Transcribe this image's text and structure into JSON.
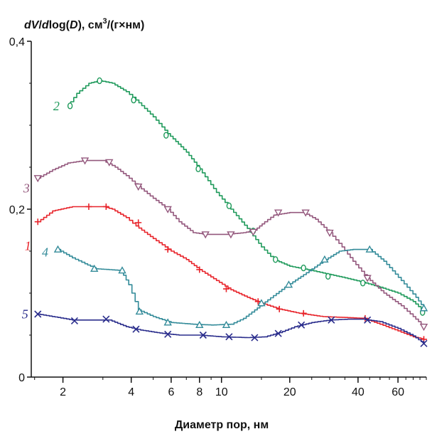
{
  "chart_data": {
    "type": "line",
    "title": "",
    "ylabel": "dV/dlog(D), см³/(г×нм)",
    "ylabel_parts": {
      "italic1": "dV",
      "slash1": "/",
      "italic2": "d",
      "log": "log(",
      "italic3": "D",
      "close": "), см",
      "sup": "3",
      "tail": "/(г×нм)"
    },
    "xlabel": "Диаметр пор, нм",
    "xscale": "log",
    "xlim": [
      1.45,
      80
    ],
    "ylim": [
      0,
      0.4
    ],
    "x_ticks": [
      {
        "value": 2,
        "label": "2"
      },
      {
        "value": 4,
        "label": "4"
      },
      {
        "value": 6,
        "label": "6"
      },
      {
        "value": 8,
        "label": "8"
      },
      {
        "value": 10,
        "label": "10"
      },
      {
        "value": 20,
        "label": "20"
      },
      {
        "value": 40,
        "label": "40"
      },
      {
        "value": 60,
        "label": "60"
      }
    ],
    "y_ticks": [
      {
        "value": 0,
        "label": "0"
      },
      {
        "value": 0.2,
        "label": "0,2"
      },
      {
        "value": 0.4,
        "label": "0,4"
      }
    ],
    "grid": false,
    "legend": "labels-at-curve-start",
    "series": [
      {
        "label": "1",
        "color": "#e8242b",
        "marker": "plus",
        "points": [
          [
            1.55,
            0.185
          ],
          [
            1.8,
            0.198
          ],
          [
            2.2,
            0.203
          ],
          [
            2.6,
            0.203
          ],
          [
            3.0,
            0.203
          ],
          [
            3.3,
            0.2
          ],
          [
            3.8,
            0.19
          ],
          [
            4.2,
            0.18
          ],
          [
            5.0,
            0.165
          ],
          [
            6.0,
            0.15
          ],
          [
            7.0,
            0.14
          ],
          [
            8.0,
            0.128
          ],
          [
            9.5,
            0.115
          ],
          [
            11.0,
            0.104
          ],
          [
            13.0,
            0.095
          ],
          [
            15.0,
            0.088
          ],
          [
            18.0,
            0.081
          ],
          [
            22.0,
            0.076
          ],
          [
            28.0,
            0.072
          ],
          [
            35.0,
            0.071
          ],
          [
            42.0,
            0.07
          ],
          [
            50.0,
            0.063
          ],
          [
            60.0,
            0.055
          ],
          [
            70.0,
            0.048
          ],
          [
            78.0,
            0.045
          ]
        ],
        "markers": [
          [
            1.55,
            0.185
          ],
          [
            2.6,
            0.203
          ],
          [
            3.1,
            0.203
          ],
          [
            4.3,
            0.184
          ],
          [
            5.8,
            0.152
          ],
          [
            8.0,
            0.128
          ],
          [
            10.5,
            0.105
          ],
          [
            14.5,
            0.09
          ],
          [
            18.0,
            0.081
          ],
          [
            23.0,
            0.076
          ],
          [
            43.0,
            0.07
          ],
          [
            78.0,
            0.045
          ]
        ]
      },
      {
        "label": "2",
        "color": "#1f9a5b",
        "marker": "circle",
        "points": [
          [
            2.1,
            0.323
          ],
          [
            2.3,
            0.338
          ],
          [
            2.6,
            0.35
          ],
          [
            2.9,
            0.353
          ],
          [
            3.3,
            0.35
          ],
          [
            3.8,
            0.34
          ],
          [
            4.2,
            0.33
          ],
          [
            5.0,
            0.31
          ],
          [
            5.8,
            0.29
          ],
          [
            7.0,
            0.268
          ],
          [
            8.0,
            0.248
          ],
          [
            9.5,
            0.22
          ],
          [
            11.0,
            0.2
          ],
          [
            13.0,
            0.177
          ],
          [
            15.0,
            0.155
          ],
          [
            17.0,
            0.14
          ],
          [
            20.0,
            0.132
          ],
          [
            24.0,
            0.128
          ],
          [
            28.0,
            0.124
          ],
          [
            34.0,
            0.119
          ],
          [
            42.0,
            0.113
          ],
          [
            50.0,
            0.107
          ],
          [
            60.0,
            0.1
          ],
          [
            70.0,
            0.09
          ],
          [
            78.0,
            0.078
          ]
        ],
        "markers": [
          [
            2.15,
            0.323
          ],
          [
            2.9,
            0.353
          ],
          [
            4.1,
            0.33
          ],
          [
            5.7,
            0.288
          ],
          [
            7.9,
            0.248
          ],
          [
            10.8,
            0.204
          ],
          [
            13.8,
            0.174
          ],
          [
            17.3,
            0.14
          ],
          [
            23.0,
            0.13
          ],
          [
            29.5,
            0.12
          ],
          [
            42.0,
            0.112
          ],
          [
            77.0,
            0.077
          ]
        ]
      },
      {
        "label": "3",
        "color": "#94587d",
        "marker": "triangle-down",
        "points": [
          [
            1.55,
            0.237
          ],
          [
            1.8,
            0.247
          ],
          [
            2.1,
            0.255
          ],
          [
            2.5,
            0.258
          ],
          [
            3.0,
            0.258
          ],
          [
            3.4,
            0.25
          ],
          [
            3.8,
            0.24
          ],
          [
            4.3,
            0.227
          ],
          [
            5.0,
            0.213
          ],
          [
            5.8,
            0.2
          ],
          [
            6.5,
            0.185
          ],
          [
            7.5,
            0.172
          ],
          [
            8.5,
            0.17
          ],
          [
            10.5,
            0.17
          ],
          [
            12.5,
            0.172
          ],
          [
            14.0,
            0.175
          ],
          [
            15.5,
            0.185
          ],
          [
            17.0,
            0.193
          ],
          [
            20.0,
            0.196
          ],
          [
            23.0,
            0.196
          ],
          [
            26.0,
            0.188
          ],
          [
            30.0,
            0.172
          ],
          [
            34.0,
            0.155
          ],
          [
            38.0,
            0.138
          ],
          [
            44.0,
            0.118
          ],
          [
            52.0,
            0.1
          ],
          [
            62.0,
            0.085
          ],
          [
            70.0,
            0.072
          ],
          [
            78.0,
            0.06
          ]
        ],
        "markers": [
          [
            1.55,
            0.237
          ],
          [
            2.5,
            0.258
          ],
          [
            3.2,
            0.256
          ],
          [
            4.3,
            0.227
          ],
          [
            5.8,
            0.2
          ],
          [
            8.5,
            0.17
          ],
          [
            11.0,
            0.17
          ],
          [
            13.8,
            0.173
          ],
          [
            17.8,
            0.196
          ],
          [
            23.5,
            0.196
          ],
          [
            30.0,
            0.172
          ],
          [
            44.0,
            0.118
          ],
          [
            78.0,
            0.06
          ]
        ]
      },
      {
        "label": "4",
        "color": "#338b99",
        "marker": "triangle-up",
        "points": [
          [
            1.9,
            0.152
          ],
          [
            2.2,
            0.142
          ],
          [
            2.5,
            0.135
          ],
          [
            2.8,
            0.129
          ],
          [
            3.2,
            0.128
          ],
          [
            3.6,
            0.127
          ],
          [
            3.9,
            0.11
          ],
          [
            4.3,
            0.08
          ],
          [
            5.0,
            0.072
          ],
          [
            6.0,
            0.065
          ],
          [
            7.5,
            0.063
          ],
          [
            9.0,
            0.062
          ],
          [
            11.0,
            0.063
          ],
          [
            12.5,
            0.07
          ],
          [
            14.0,
            0.08
          ],
          [
            16.0,
            0.092
          ],
          [
            19.0,
            0.107
          ],
          [
            23.0,
            0.122
          ],
          [
            28.0,
            0.138
          ],
          [
            33.0,
            0.15
          ],
          [
            38.0,
            0.152
          ],
          [
            45.0,
            0.152
          ],
          [
            52.0,
            0.138
          ],
          [
            62.0,
            0.115
          ],
          [
            72.0,
            0.095
          ],
          [
            78.0,
            0.082
          ]
        ],
        "markers": [
          [
            1.9,
            0.152
          ],
          [
            2.75,
            0.129
          ],
          [
            3.65,
            0.127
          ],
          [
            4.35,
            0.078
          ],
          [
            5.8,
            0.065
          ],
          [
            8.0,
            0.062
          ],
          [
            10.5,
            0.062
          ],
          [
            15.0,
            0.088
          ],
          [
            19.8,
            0.11
          ],
          [
            28.5,
            0.14
          ],
          [
            45.0,
            0.152
          ],
          [
            78.0,
            0.082
          ]
        ]
      },
      {
        "label": "5",
        "color": "#2a2d8c",
        "marker": "x",
        "points": [
          [
            1.55,
            0.075
          ],
          [
            1.9,
            0.071
          ],
          [
            2.2,
            0.068
          ],
          [
            2.6,
            0.068
          ],
          [
            3.2,
            0.068
          ],
          [
            3.8,
            0.06
          ],
          [
            4.4,
            0.056
          ],
          [
            5.5,
            0.052
          ],
          [
            6.5,
            0.05
          ],
          [
            8.0,
            0.05
          ],
          [
            10.0,
            0.048
          ],
          [
            13.0,
            0.047
          ],
          [
            15.5,
            0.048
          ],
          [
            18.0,
            0.053
          ],
          [
            21.0,
            0.06
          ],
          [
            25.0,
            0.065
          ],
          [
            30.0,
            0.068
          ],
          [
            36.0,
            0.069
          ],
          [
            42.0,
            0.069
          ],
          [
            50.0,
            0.066
          ],
          [
            60.0,
            0.058
          ],
          [
            70.0,
            0.049
          ],
          [
            78.0,
            0.04
          ]
        ],
        "markers": [
          [
            1.55,
            0.075
          ],
          [
            2.25,
            0.067
          ],
          [
            3.1,
            0.069
          ],
          [
            4.2,
            0.057
          ],
          [
            5.8,
            0.051
          ],
          [
            8.3,
            0.05
          ],
          [
            10.8,
            0.048
          ],
          [
            14.0,
            0.047
          ],
          [
            17.8,
            0.052
          ],
          [
            22.5,
            0.062
          ],
          [
            30.5,
            0.068
          ],
          [
            44.0,
            0.068
          ],
          [
            78.0,
            0.04
          ]
        ]
      }
    ]
  }
}
